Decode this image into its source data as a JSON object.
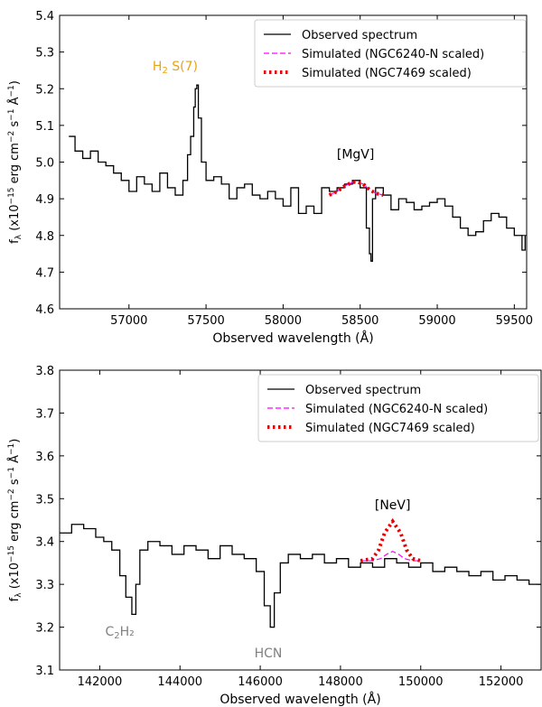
{
  "chart_data": [
    {
      "type": "line",
      "xlabel": "Observed wavelength (Å)",
      "ylabel_main": "f",
      "ylabel_sub": "λ",
      "ylabel_rest": " (x10",
      "ylabel_exp1": "−15",
      "ylabel_mid": " erg cm",
      "ylabel_exp2": "−2",
      "ylabel_mid2": " s",
      "ylabel_exp3": "−1",
      "ylabel_end": " Å",
      "ylabel_exp4": "−1",
      "ylabel_close": ")",
      "xlim": [
        56550,
        59580
      ],
      "ylim": [
        4.6,
        5.4
      ],
      "xticks": [
        57000,
        57500,
        58000,
        58500,
        59000,
        59500
      ],
      "xtick_labels": [
        "57000",
        "57500",
        "58000",
        "58500",
        "59000",
        "59500"
      ],
      "yticks": [
        4.6,
        4.7,
        4.8,
        4.9,
        5.0,
        5.1,
        5.2,
        5.3,
        5.4
      ],
      "ytick_labels": [
        "4.6",
        "4.7",
        "4.8",
        "4.9",
        "5.0",
        "5.1",
        "5.2",
        "5.3",
        "5.4"
      ],
      "legend_position": "top-right",
      "legend": [
        "Observed spectrum",
        "Simulated (NGC6240-N scaled)",
        "Simulated (NGC7469 scaled)"
      ],
      "annotations": [
        {
          "text_main": "H",
          "text_sub": "2",
          "text_rest": " S(7)",
          "x": 57300,
          "y": 5.25,
          "color": "#e8a317"
        },
        {
          "text_main": "[MgV]",
          "text_sub": "",
          "text_rest": "",
          "x": 58470,
          "y": 5.01,
          "color": "#000000"
        }
      ],
      "series": [
        {
          "name": "Observed spectrum",
          "color": "#000000",
          "style": "solid-step",
          "x": [
            56610,
            56650,
            56700,
            56750,
            56800,
            56850,
            56900,
            56950,
            57000,
            57050,
            57100,
            57150,
            57200,
            57250,
            57300,
            57350,
            57380,
            57400,
            57420,
            57430,
            57440,
            57450,
            57470,
            57500,
            57550,
            57600,
            57650,
            57700,
            57750,
            57800,
            57850,
            57900,
            57950,
            58000,
            58050,
            58100,
            58150,
            58200,
            58250,
            58300,
            58350,
            58400,
            58450,
            58500,
            58540,
            58560,
            58570,
            58580,
            58600,
            58650,
            58700,
            58750,
            58800,
            58850,
            58900,
            58950,
            59000,
            59050,
            59100,
            59150,
            59200,
            59250,
            59300,
            59350,
            59400,
            59450,
            59500,
            59550,
            59570
          ],
          "y": [
            5.07,
            5.03,
            5.01,
            5.03,
            5.0,
            4.99,
            4.97,
            4.95,
            4.92,
            4.96,
            4.94,
            4.92,
            4.97,
            4.93,
            4.91,
            4.95,
            5.02,
            5.07,
            5.15,
            5.2,
            5.21,
            5.12,
            5.0,
            4.95,
            4.96,
            4.94,
            4.9,
            4.93,
            4.94,
            4.91,
            4.9,
            4.92,
            4.9,
            4.88,
            4.93,
            4.86,
            4.88,
            4.86,
            4.93,
            4.92,
            4.93,
            4.94,
            4.95,
            4.93,
            4.82,
            4.75,
            4.73,
            4.9,
            4.93,
            4.91,
            4.87,
            4.9,
            4.89,
            4.87,
            4.88,
            4.89,
            4.9,
            4.88,
            4.85,
            4.82,
            4.8,
            4.81,
            4.84,
            4.86,
            4.85,
            4.82,
            4.8,
            4.76,
            4.8
          ]
        },
        {
          "name": "Simulated (NGC6240-N scaled)",
          "color": "#ff00ff",
          "style": "dashed",
          "x": [
            58300,
            58350,
            58400,
            58450,
            58480,
            58520,
            58560,
            58600,
            58650
          ],
          "y": [
            4.91,
            4.92,
            4.935,
            4.945,
            4.946,
            4.94,
            4.925,
            4.915,
            4.91
          ]
        },
        {
          "name": "Simulated (NGC7469 scaled)",
          "color": "#ee0000",
          "style": "dotted",
          "x": [
            58300,
            58350,
            58400,
            58450,
            58480,
            58520,
            58560,
            58600,
            58650
          ],
          "y": [
            4.91,
            4.92,
            4.935,
            4.945,
            4.946,
            4.94,
            4.925,
            4.915,
            4.91
          ]
        }
      ]
    },
    {
      "type": "line",
      "xlabel": "Observed wavelength (Å)",
      "ylabel_main": "f",
      "ylabel_sub": "λ",
      "ylabel_rest": " (x10",
      "ylabel_exp1": "−15",
      "ylabel_mid": " erg cm",
      "ylabel_exp2": "−2",
      "ylabel_mid2": " s",
      "ylabel_exp3": "−1",
      "ylabel_end": " Å",
      "ylabel_exp4": "−1",
      "ylabel_close": ")",
      "xlim": [
        141000,
        153000
      ],
      "ylim": [
        3.1,
        3.8
      ],
      "xticks": [
        142000,
        144000,
        146000,
        148000,
        150000,
        152000
      ],
      "xtick_labels": [
        "142000",
        "144000",
        "146000",
        "148000",
        "150000",
        "152000"
      ],
      "yticks": [
        3.1,
        3.2,
        3.3,
        3.4,
        3.5,
        3.6,
        3.7,
        3.8
      ],
      "ytick_labels": [
        "3.1",
        "3.2",
        "3.3",
        "3.4",
        "3.5",
        "3.6",
        "3.7",
        "3.8"
      ],
      "legend_position": "top-right",
      "legend": [
        "Observed spectrum",
        "Simulated (NGC6240-N scaled)",
        "Simulated (NGC7469 scaled)"
      ],
      "annotations": [
        {
          "text_main": "[NeV]",
          "text_sub": "",
          "text_rest": "",
          "x": 149300,
          "y": 3.475,
          "color": "#000000"
        },
        {
          "text_main": "C",
          "text_sub": "2",
          "text_rest": "H₂",
          "x": 142500,
          "y": 3.18,
          "color": "#808080"
        },
        {
          "text_main": "HCN",
          "text_sub": "",
          "text_rest": "",
          "x": 146200,
          "y": 3.13,
          "color": "#808080"
        }
      ],
      "series": [
        {
          "name": "Observed spectrum",
          "color": "#000000",
          "style": "solid-step",
          "x": [
            141000,
            141300,
            141600,
            141900,
            142100,
            142300,
            142500,
            142650,
            142800,
            142900,
            143000,
            143200,
            143500,
            143800,
            144100,
            144400,
            144700,
            145000,
            145300,
            145600,
            145900,
            146100,
            146250,
            146350,
            146500,
            146700,
            147000,
            147300,
            147600,
            147900,
            148200,
            148500,
            148800,
            149100,
            149400,
            149700,
            150000,
            150300,
            150600,
            150900,
            151200,
            151500,
            151800,
            152100,
            152400,
            152700,
            153000
          ],
          "y": [
            3.42,
            3.44,
            3.43,
            3.41,
            3.4,
            3.38,
            3.32,
            3.27,
            3.23,
            3.3,
            3.38,
            3.4,
            3.39,
            3.37,
            3.39,
            3.38,
            3.36,
            3.39,
            3.37,
            3.36,
            3.33,
            3.25,
            3.2,
            3.28,
            3.35,
            3.37,
            3.36,
            3.37,
            3.35,
            3.36,
            3.34,
            3.35,
            3.34,
            3.36,
            3.35,
            3.34,
            3.35,
            3.33,
            3.34,
            3.33,
            3.32,
            3.33,
            3.31,
            3.32,
            3.31,
            3.3,
            3.3
          ]
        },
        {
          "name": "Simulated (NGC6240-N scaled)",
          "color": "#ff00ff",
          "style": "dashed",
          "x": [
            148500,
            148800,
            149000,
            149150,
            149300,
            149450,
            149600,
            149800,
            150000
          ],
          "y": [
            3.355,
            3.355,
            3.36,
            3.37,
            3.377,
            3.37,
            3.36,
            3.355,
            3.355
          ]
        },
        {
          "name": "Simulated (NGC7469 scaled)",
          "color": "#ee0000",
          "style": "dotted",
          "x": [
            148500,
            148800,
            148950,
            149100,
            149300,
            149500,
            149650,
            149800,
            150000
          ],
          "y": [
            3.355,
            3.36,
            3.38,
            3.42,
            3.447,
            3.42,
            3.38,
            3.36,
            3.355
          ]
        }
      ]
    }
  ]
}
